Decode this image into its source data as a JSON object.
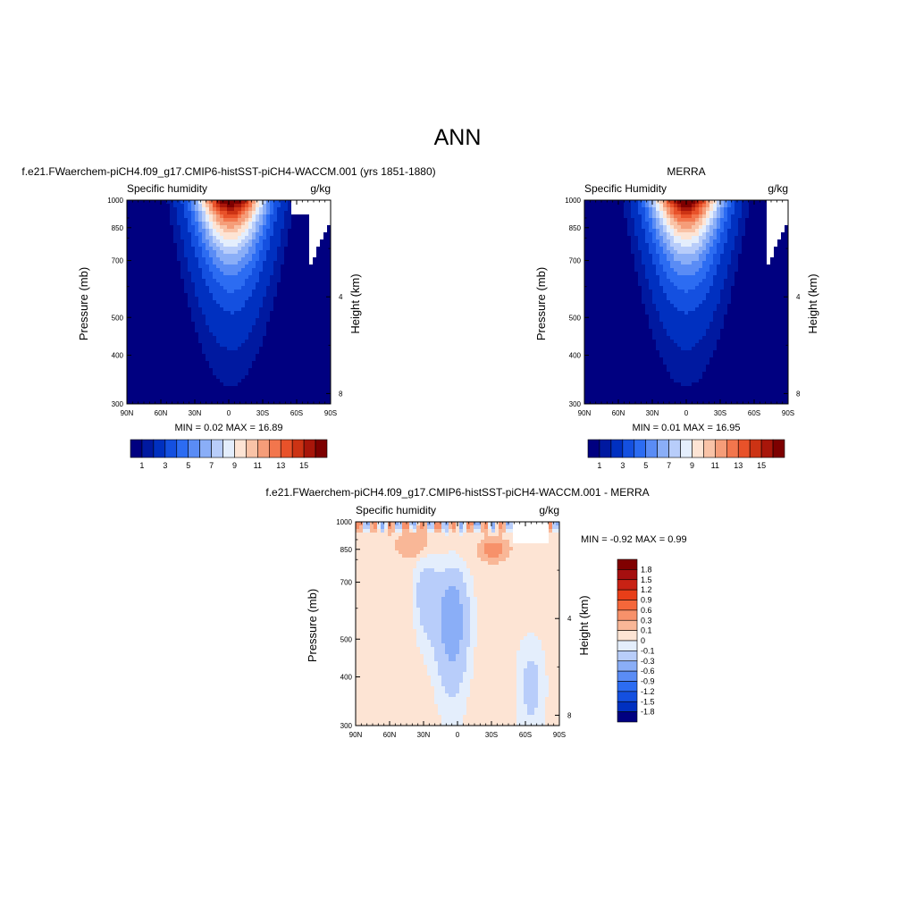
{
  "figure": {
    "title": "ANN"
  },
  "chart_data": [
    {
      "type": "heatmap",
      "title": "f.e21.FWaerchem-piCH4.f09_g17.CMIP6-histSST-piCH4-WACCM.001 (yrs 1851-1880)",
      "subtitle_left": "Specific humidity",
      "subtitle_right": "g/kg",
      "xlabel": "",
      "ylabel": "Pressure (mb)",
      "ylabel_right": "Height (km)",
      "x_ticks": [
        "90N",
        "60N",
        "30N",
        "0",
        "30S",
        "60S",
        "90S"
      ],
      "y_ticks": [
        "300",
        "400",
        "500",
        "700",
        "850",
        "1000"
      ],
      "y_ticks_right": [
        "8",
        "4"
      ],
      "xlim": [
        90,
        -90
      ],
      "ylim": [
        1000,
        300
      ],
      "y_scale": "log",
      "stats": "MIN =   0.02  MAX =  16.89",
      "colorbar_labels": [
        "1",
        "3",
        "5",
        "7",
        "9",
        "11",
        "13",
        "15"
      ],
      "peak": {
        "lat": -2,
        "p": 1000,
        "value": 16.89
      },
      "min": 0.02
    },
    {
      "type": "heatmap",
      "title": "MERRA",
      "subtitle_left": "Specific Humidity",
      "subtitle_right": "g/kg",
      "xlabel": "",
      "ylabel": "Pressure (mb)",
      "ylabel_right": "Height (km)",
      "x_ticks": [
        "90N",
        "60N",
        "30N",
        "0",
        "30S",
        "60S",
        "90S"
      ],
      "y_ticks": [
        "300",
        "400",
        "500",
        "700",
        "850",
        "1000"
      ],
      "y_ticks_right": [
        "8",
        "4"
      ],
      "xlim": [
        90,
        -90
      ],
      "ylim": [
        1000,
        300
      ],
      "y_scale": "log",
      "stats": "MIN =   0.01  MAX =  16.95",
      "colorbar_labels": [
        "1",
        "3",
        "5",
        "7",
        "9",
        "11",
        "13",
        "15"
      ],
      "peak": {
        "lat": 0,
        "p": 1000,
        "value": 16.95
      },
      "min": 0.01
    },
    {
      "type": "heatmap",
      "title": "f.e21.FWaerchem-piCH4.f09_g17.CMIP6-histSST-piCH4-WACCM.001 - MERRA",
      "subtitle_left": "Specific humidity",
      "subtitle_right": "g/kg",
      "xlabel": "",
      "ylabel": "Pressure (mb)",
      "ylabel_right": "Height (km)",
      "x_ticks": [
        "90N",
        "60N",
        "30N",
        "0",
        "30S",
        "60S",
        "90S"
      ],
      "y_ticks": [
        "300",
        "400",
        "500",
        "700",
        "850",
        "1000"
      ],
      "y_ticks_right": [
        "8",
        "4"
      ],
      "xlim": [
        90,
        -90
      ],
      "ylim": [
        1000,
        300
      ],
      "y_scale": "log",
      "stats": "MIN =  -0.92  MAX =   0.99",
      "colorbar_labels": [
        "1.8",
        "1.5",
        "1.2",
        "0.9",
        "0.6",
        "0.3",
        "0.1",
        "0",
        "-0.1",
        "-0.3",
        "-0.6",
        "-0.9",
        "-1.2",
        "-1.5",
        "-1.8"
      ],
      "min": -0.92,
      "max": 0.99
    }
  ],
  "colors": {
    "sequential": [
      "#000080",
      "#0019a0",
      "#0030c0",
      "#1450e0",
      "#2c6cf2",
      "#5a8cf5",
      "#8aaef7",
      "#b8cdfa",
      "#e4eefc",
      "#fde4d4",
      "#f9c3a7",
      "#f59d79",
      "#f2764d",
      "#e8522a",
      "#cc3314",
      "#a8160a",
      "#7d0000"
    ],
    "diverging_top_down": [
      "#800000",
      "#a50f0f",
      "#c82214",
      "#e83e18",
      "#f5673a",
      "#f7916a",
      "#f9b797",
      "#fde4d4",
      "#e4eefc",
      "#b8cdfa",
      "#8aaef7",
      "#5a8cf5",
      "#2c6cf2",
      "#1450e0",
      "#0030c0",
      "#000080"
    ],
    "land_mask": "#ffffff"
  }
}
